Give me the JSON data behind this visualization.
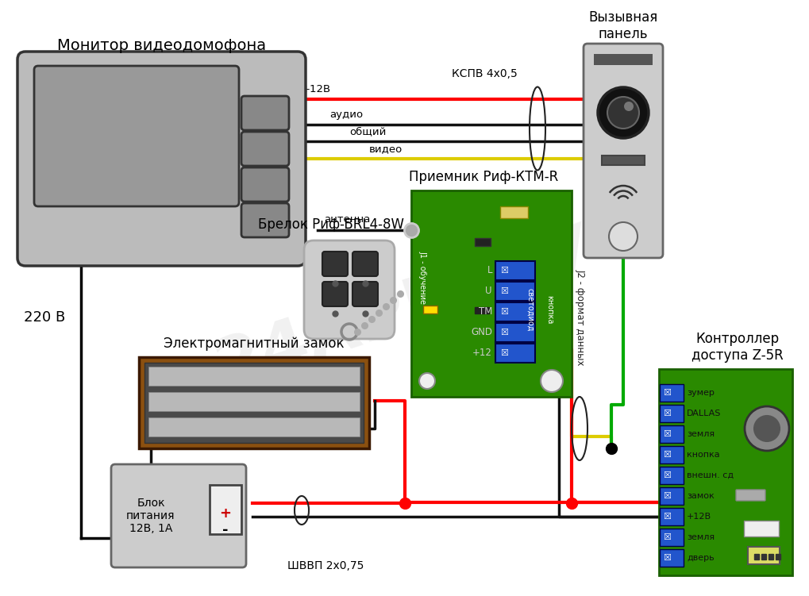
{
  "bg_color": "#ffffff",
  "monitor_label": "Монитор видеодомофона",
  "panel_label": "Вызывная\nпанель",
  "receiver_label": "Приемник Риф-КТМ-R",
  "keyfob_label": "Брелок Риф-BRL4-8W",
  "lock_label": "Электромагнитный замок",
  "psu_label": "Блок\nпитания\n12В, 1А",
  "voltage_label": "220 В",
  "controller_label": "Контроллер\nдоступа Z-5R",
  "cable1_label": "КСПВ 4х0,5",
  "cable2_label": "КСПВ 4х0,5",
  "cable3_label": "ШВВП 2х0,75",
  "wire_plus_label": "+12В",
  "wire_audio_label": "аудио",
  "wire_common_label": "общий",
  "wire_video_label": "видео",
  "wire_antenna_label": "антенна",
  "j2_label": "J2 - формат данных",
  "j1_label": "J1 - обучение",
  "connector_labels": [
    "+12",
    "GND",
    "TM",
    "U",
    "L"
  ],
  "controller_pins": [
    "зумер",
    "DALLAS",
    "земля",
    "кнопка",
    "внешн. сд",
    "замок",
    "+12В",
    "земля",
    "дверь"
  ],
  "watermark": "24АРМ.РУ"
}
